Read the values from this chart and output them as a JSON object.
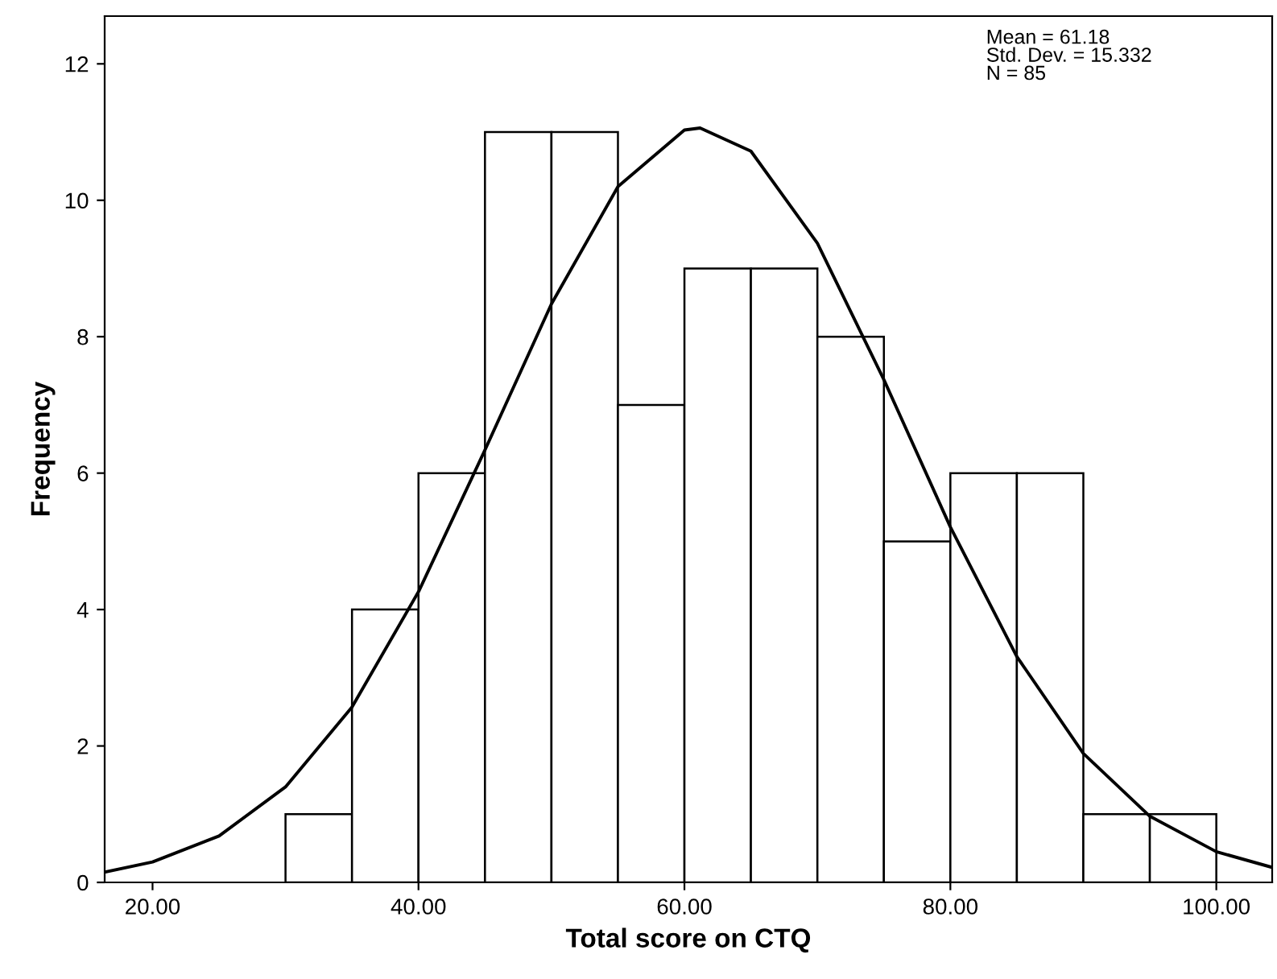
{
  "chart_data": {
    "type": "histogram",
    "xlabel": "Total score on CTQ",
    "ylabel": "Frequency",
    "bins": [
      30,
      35,
      40,
      45,
      50,
      55,
      60,
      65,
      70,
      75,
      80,
      85,
      90,
      95,
      100
    ],
    "values": [
      1,
      4,
      6,
      11,
      11,
      7,
      9,
      9,
      8,
      5,
      6,
      6,
      1,
      1
    ],
    "color": "#ffffff",
    "series": [
      {
        "type": "line",
        "color": "#000000",
        "x": [
          16.4,
          20,
          25,
          30,
          35,
          40,
          45,
          50,
          55,
          60,
          61.18,
          65,
          70,
          75,
          80,
          85,
          90,
          95,
          100,
          104.2
        ],
        "values": [
          0.15,
          0.3,
          0.68,
          1.4,
          2.57,
          4.26,
          6.34,
          8.48,
          10.2,
          11.03,
          11.06,
          10.72,
          9.37,
          7.37,
          5.21,
          3.31,
          1.89,
          0.97,
          0.45,
          0.22
        ]
      }
    ],
    "xlim": [
      16.4,
      104.2
    ],
    "ylim": [
      0,
      12.7
    ],
    "xticks": [
      {
        "value": 20,
        "label": "20.00"
      },
      {
        "value": 40,
        "label": "40.00"
      },
      {
        "value": 60,
        "label": "60.00"
      },
      {
        "value": 80,
        "label": "80.00"
      },
      {
        "value": 100,
        "label": "100.00"
      }
    ],
    "yticks": [
      0,
      2,
      4,
      6,
      8,
      10,
      12
    ],
    "annotations": [
      "Mean = 61.18\nStd. Dev. = 15.332\nN = 85"
    ]
  }
}
